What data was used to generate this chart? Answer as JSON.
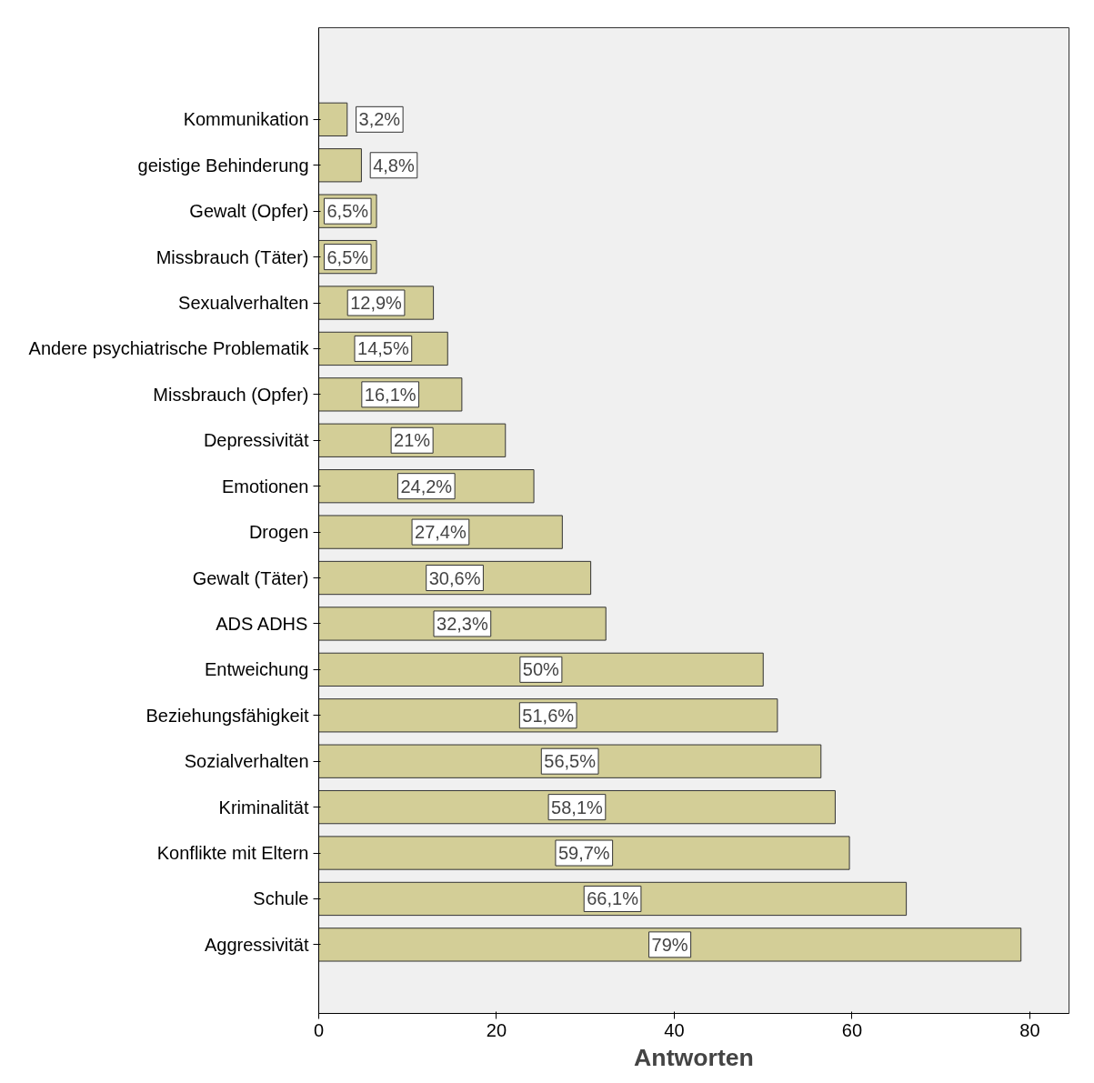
{
  "chart_data": {
    "type": "bar",
    "orientation": "horizontal",
    "xlabel": "Antworten",
    "categories": [
      "Kommunikation",
      "geistige Behinderung",
      "Gewalt (Opfer)",
      "Missbrauch (Täter)",
      "Sexualverhalten",
      "Andere psychiatrische Problematik",
      "Missbrauch (Opfer)",
      "Depressivität",
      "Emotionen",
      "Drogen",
      "Gewalt (Täter)",
      "ADS ADHS",
      "Entweichung",
      "Beziehungsfähigkeit",
      "Sozialverhalten",
      "Kriminalität",
      "Konflikte mit Eltern",
      "Schule",
      "Aggressivität"
    ],
    "values": [
      3.2,
      4.8,
      6.5,
      6.5,
      12.9,
      14.5,
      16.1,
      21,
      24.2,
      27.4,
      30.6,
      32.3,
      50,
      51.6,
      56.5,
      58.1,
      59.7,
      66.1,
      79
    ],
    "value_labels": [
      "3,2%",
      "4,8%",
      "6,5%",
      "6,5%",
      "12,9%",
      "14,5%",
      "16,1%",
      "21%",
      "24,2%",
      "27,4%",
      "30,6%",
      "32,3%",
      "50%",
      "51,6%",
      "56,5%",
      "58,1%",
      "59,7%",
      "66,1%",
      "79%"
    ],
    "color": "#d3ce97",
    "xlim": [
      0,
      84.4
    ],
    "xticks": [
      0,
      20,
      40,
      60,
      80
    ],
    "grid": false
  }
}
